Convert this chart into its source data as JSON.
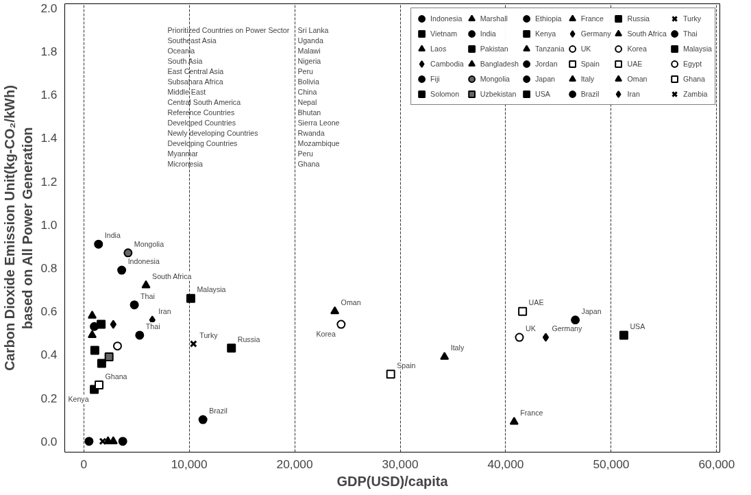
{
  "chart_data": {
    "type": "scatter",
    "xlabel": "GDP(USD)/capita",
    "ylabel": "Carbon Dioxide Emission Unit(kg-CO₂/kWh)\nbased on All Power Generation",
    "xlim": [
      -1800,
      60300
    ],
    "ylim": [
      -0.05,
      2.02
    ],
    "xticks": [
      0,
      {
        "value": 10000,
        "label": "10,000"
      },
      {
        "value": 20000,
        "label": "20,000"
      },
      {
        "value": 30000,
        "label": "30,000"
      },
      {
        "value": 40000,
        "label": "40,000"
      },
      {
        "value": 50000,
        "label": "50,000"
      },
      {
        "value": 60000,
        "label": "60,000"
      }
    ],
    "yticks": [
      {
        "value": 0,
        "label": "0.0"
      },
      {
        "value": 0.2,
        "label": "0.2"
      },
      {
        "value": 0.4,
        "label": "0.4"
      },
      {
        "value": 0.6,
        "label": "0.6"
      },
      {
        "value": 0.8,
        "label": "0.8"
      },
      {
        "value": 1.0,
        "label": "1.0"
      },
      {
        "value": 1.2,
        "label": "1.2"
      },
      {
        "value": 1.4,
        "label": "1.4"
      },
      {
        "value": 1.6,
        "label": "1.6"
      },
      {
        "value": 1.8,
        "label": "1.8"
      },
      {
        "value": 2.0,
        "label": "2.0"
      }
    ],
    "grid": "x",
    "legend": "top right",
    "series": [
      {
        "name": "Indonesia",
        "color": "#000000",
        "marker": "circle",
        "x": [
          3600
        ],
        "values": [
          0.79
        ]
      },
      {
        "name": "Vietnam",
        "color": "#000000",
        "marker": "square",
        "x": [
          1650
        ],
        "values": [
          0.54
        ]
      },
      {
        "name": "Laos",
        "color": "#000000",
        "marker": "triangle",
        "x": [
          800
        ],
        "values": [
          0.58
        ]
      },
      {
        "name": "Cambodia",
        "color": "#000000",
        "marker": "diamond",
        "x": [
          2800
        ],
        "values": [
          0.54
        ]
      },
      {
        "name": "Fiji",
        "color": "#000000",
        "marker": "circle",
        "x": [
          500
        ],
        "values": [
          0.0
        ]
      },
      {
        "name": "Solomon",
        "color": "#000000",
        "marker": "square",
        "x": [
          1700
        ],
        "values": [
          0.36
        ]
      },
      {
        "name": "Marshall",
        "color": "#000000",
        "marker": "triangle",
        "x": [
          2300
        ],
        "values": [
          0.0
        ]
      },
      {
        "name": "India",
        "color": "#000000",
        "marker": "circle",
        "x": [
          1400
        ],
        "values": [
          0.91
        ]
      },
      {
        "name": "Pakistan",
        "color": "#000000",
        "marker": "square",
        "x": [
          1050
        ],
        "values": [
          0.42
        ]
      },
      {
        "name": "Bangladesh",
        "color": "#000000",
        "marker": "triangle",
        "x": [
          800
        ],
        "values": [
          0.49
        ]
      },
      {
        "name": "Mongolia",
        "color": "#666666",
        "marker": "circle",
        "x": [
          4200
        ],
        "values": [
          0.87
        ]
      },
      {
        "name": "Uzbekistan",
        "color": "#666666",
        "marker": "square",
        "x": [
          2400
        ],
        "values": [
          0.39
        ]
      },
      {
        "name": "Ethiopia",
        "color": "#000000",
        "marker": "circle",
        "x": [
          1000
        ],
        "values": [
          0.53
        ]
      },
      {
        "name": "Kenya",
        "color": "#000000",
        "marker": "square",
        "x": [
          1000
        ],
        "values": [
          0.24
        ]
      },
      {
        "name": "Tanzania",
        "color": "#000000",
        "marker": "triangle",
        "x": [
          2800
        ],
        "values": [
          0.0
        ]
      },
      {
        "name": "Jordan",
        "color": "#000000",
        "marker": "circle",
        "x": [
          3700
        ],
        "values": [
          0.0
        ]
      },
      {
        "name": "Japan",
        "color": "#000000",
        "marker": "circle",
        "x": [
          46600
        ],
        "values": [
          0.56
        ]
      },
      {
        "name": "USA",
        "color": "#000000",
        "marker": "square",
        "x": [
          51200
        ],
        "values": [
          0.49
        ]
      },
      {
        "name": "France",
        "color": "#000000",
        "marker": "triangle",
        "x": [
          40800
        ],
        "values": [
          0.09
        ]
      },
      {
        "name": "Germany",
        "color": "#000000",
        "marker": "diamond",
        "x": [
          43800
        ],
        "values": [
          0.48
        ]
      },
      {
        "name": "UK",
        "color": "#ffffff",
        "marker": "circle",
        "x": [
          41300
        ],
        "values": [
          0.48
        ]
      },
      {
        "name": "Spain",
        "color": "#ffffff",
        "marker": "square",
        "x": [
          29100
        ],
        "values": [
          0.31
        ]
      },
      {
        "name": "Italy",
        "color": "#000000",
        "marker": "triangle",
        "x": [
          34200
        ],
        "values": [
          0.39
        ]
      },
      {
        "name": "Brazil",
        "color": "#000000",
        "marker": "circle",
        "x": [
          11300
        ],
        "values": [
          0.1
        ]
      },
      {
        "name": "Russia",
        "color": "#000000",
        "marker": "square",
        "x": [
          14000
        ],
        "values": [
          0.43
        ]
      },
      {
        "name": "South Africa",
        "color": "#000000",
        "marker": "triangle",
        "x": [
          5900
        ],
        "values": [
          0.72
        ]
      },
      {
        "name": "Korea",
        "color": "#ffffff",
        "marker": "circle",
        "x": [
          24400
        ],
        "values": [
          0.54
        ]
      },
      {
        "name": "UAE",
        "color": "#ffffff",
        "marker": "square",
        "x": [
          41600
        ],
        "values": [
          0.6
        ]
      },
      {
        "name": "Oman",
        "color": "#000000",
        "marker": "triangle",
        "x": [
          23800
        ],
        "values": [
          0.6
        ]
      },
      {
        "name": "Iran",
        "color": "#000000",
        "marker": "diamond",
        "x": [
          6500
        ],
        "values": [
          0.56
        ]
      },
      {
        "name": "Turky",
        "color": "#000000",
        "marker": "cross",
        "x": [
          10400
        ],
        "values": [
          0.45
        ]
      },
      {
        "name": "Thai",
        "color": "#000000",
        "marker": "circle",
        "x": [
          4800,
          5300
        ],
        "values": [
          0.63,
          0.49
        ]
      },
      {
        "name": "Malaysia",
        "color": "#000000",
        "marker": "square",
        "x": [
          10150
        ],
        "values": [
          0.66
        ]
      },
      {
        "name": "Egypt",
        "color": "#ffffff",
        "marker": "circle",
        "x": [
          3200
        ],
        "values": [
          0.44
        ]
      },
      {
        "name": "Ghana",
        "color": "#ffffff",
        "marker": "square",
        "x": [
          1450
        ],
        "values": [
          0.26
        ]
      },
      {
        "name": "Zambia",
        "color": "#000000",
        "marker": "cross",
        "x": [
          1800
        ],
        "values": [
          0.0
        ]
      }
    ],
    "annotations": [
      "Prioritized Countries on Power Sector",
      "Southeast Asia",
      "Oceania",
      "South Asia",
      "East Central Asia",
      "Subsahara Africa",
      "Middle East",
      "Central South America",
      "Reference Countries",
      "Developed Countries",
      "Newly developing Countries",
      "Developing Countries",
      "Myanmar",
      "Micronesia",
      "Sri Lanka",
      "Uganda",
      "Malawi",
      "Nigeria",
      "Peru",
      "Bolivia",
      "China",
      "Nepal",
      "Bhutan",
      "Sierra Leone",
      "Rwanda",
      "Mozambique",
      "Peru",
      "Ghana",
      {
        "text": "India",
        "x": 1400,
        "y": 0.91
      },
      {
        "text": "Mongolia",
        "x": 4200,
        "y": 0.87
      },
      {
        "text": "Indonesia",
        "x": 3600,
        "y": 0.79
      },
      {
        "text": "South Africa",
        "x": 5900,
        "y": 0.72
      },
      {
        "text": "Thai",
        "x": 4800,
        "y": 0.63
      },
      {
        "text": "Iran",
        "x": 6500,
        "y": 0.56
      },
      {
        "text": "Thai",
        "x": 5300,
        "y": 0.49
      },
      {
        "text": "Malaysia",
        "x": 10150,
        "y": 0.66
      },
      {
        "text": "Turky",
        "x": 10400,
        "y": 0.45
      },
      {
        "text": "Russia",
        "x": 14000,
        "y": 0.43
      },
      {
        "text": "Ghana",
        "x": 1450,
        "y": 0.26
      },
      {
        "text": "Kenya",
        "x": 1000,
        "y": 0.24
      },
      {
        "text": "Brazil",
        "x": 11300,
        "y": 0.1
      },
      {
        "text": "Oman",
        "x": 23800,
        "y": 0.6
      },
      {
        "text": "Korea",
        "x": 24400,
        "y": 0.54
      },
      {
        "text": "Spain",
        "x": 29100,
        "y": 0.31
      },
      {
        "text": "Italy",
        "x": 34200,
        "y": 0.39
      },
      {
        "text": "UAE",
        "x": 41600,
        "y": 0.6
      },
      {
        "text": "UK",
        "x": 41300,
        "y": 0.48
      },
      {
        "text": "Germany",
        "x": 43800,
        "y": 0.48
      },
      {
        "text": "Japan",
        "x": 46600,
        "y": 0.56
      },
      {
        "text": "USA",
        "x": 51200,
        "y": 0.49
      },
      {
        "text": "France",
        "x": 40800,
        "y": 0.09
      }
    ]
  }
}
